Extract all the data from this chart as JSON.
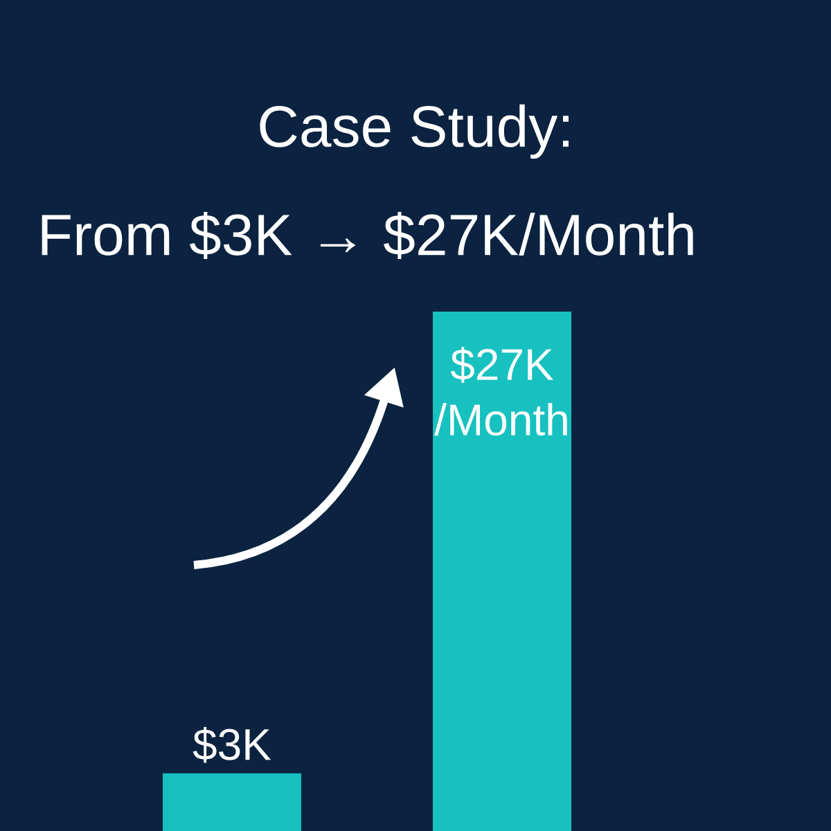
{
  "chart_data": {
    "type": "bar",
    "title": "Case Study:",
    "subtitle": "From $3K → $27K/Month",
    "categories": [
      null,
      null
    ],
    "values": [
      3,
      27
    ],
    "value_labels": [
      "$3K",
      "$27K /Month"
    ],
    "color": "#17c1bf"
  }
}
